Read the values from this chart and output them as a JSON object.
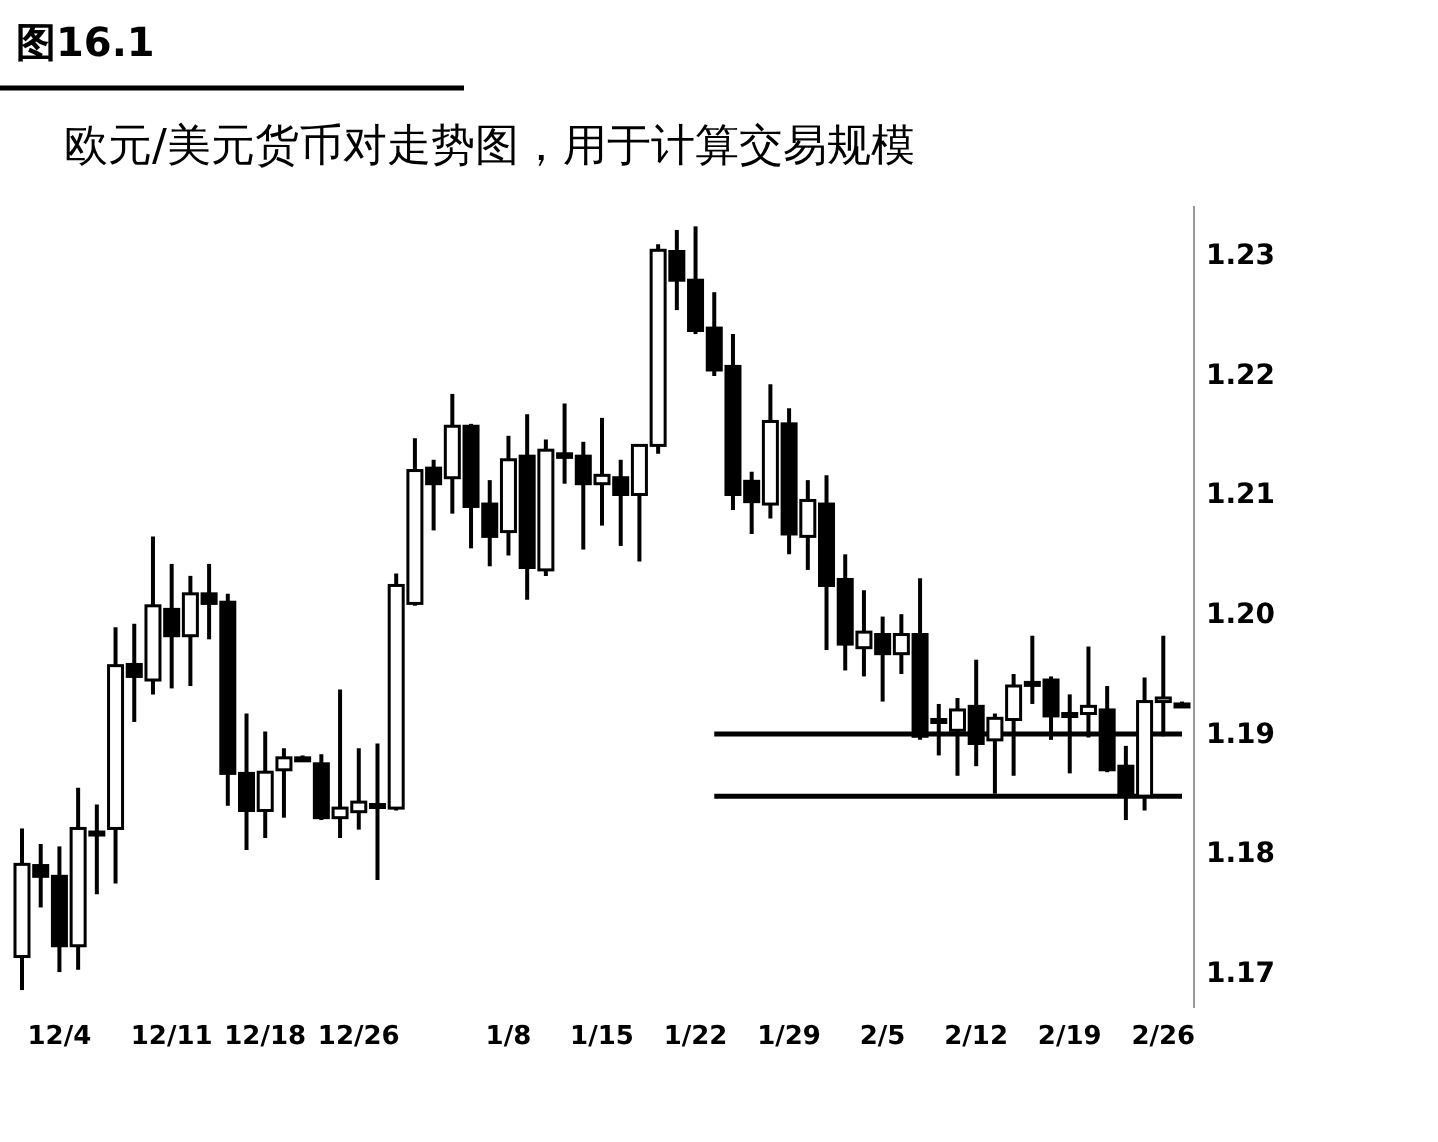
{
  "chart_data": {
    "type": "candlestick",
    "title": "图16.1",
    "subtitle": "欧元/美元货币对走势图，用于计算交易规模",
    "categories": [
      null,
      null,
      "12/4",
      null,
      null,
      null,
      null,
      null,
      "12/11",
      null,
      null,
      null,
      null,
      "12/18",
      null,
      null,
      null,
      null,
      "12/26",
      null,
      null,
      null,
      null,
      null,
      null,
      null,
      "1/8",
      null,
      null,
      null,
      null,
      "1/15",
      null,
      null,
      null,
      null,
      "1/22",
      null,
      null,
      null,
      null,
      "1/29",
      null,
      null,
      null,
      null,
      "2/5",
      null,
      null,
      null,
      null,
      "2/12",
      null,
      null,
      null,
      null,
      "2/19",
      null,
      null,
      null,
      null,
      "2/26",
      null
    ],
    "ohlc": [
      [
        1.1713,
        1.182,
        1.1685,
        1.179
      ],
      [
        1.1789,
        1.1807,
        1.1754,
        1.178
      ],
      [
        1.178,
        1.1805,
        1.17,
        1.1722
      ],
      [
        1.1722,
        1.1854,
        1.1702,
        1.182
      ],
      [
        1.1817,
        1.184,
        1.1765,
        1.1817
      ],
      [
        1.182,
        1.1988,
        1.1774,
        1.1956
      ],
      [
        1.1957,
        1.1991,
        1.1909,
        1.1947
      ],
      [
        1.1944,
        1.2064,
        1.1932,
        1.2006
      ],
      [
        1.2003,
        1.2041,
        1.1937,
        1.1981
      ],
      [
        1.1981,
        1.2031,
        1.1939,
        1.2016
      ],
      [
        1.2016,
        1.2041,
        1.1978,
        1.2008
      ],
      [
        1.2009,
        1.2016,
        1.1839,
        1.1866
      ],
      [
        1.1866,
        1.1916,
        1.1802,
        1.1835
      ],
      [
        1.1835,
        1.1901,
        1.1812,
        1.1867
      ],
      [
        1.1869,
        1.1887,
        1.1829,
        1.1879
      ],
      [
        1.1879,
        1.1881,
        1.1877,
        1.1879
      ],
      [
        1.1874,
        1.1882,
        1.1827,
        1.1829
      ],
      [
        1.1829,
        1.1936,
        1.1812,
        1.1837
      ],
      [
        1.1834,
        1.1887,
        1.1819,
        1.1842
      ],
      [
        1.184,
        1.1891,
        1.1777,
        1.184
      ],
      [
        1.1837,
        1.2033,
        1.1835,
        1.2023
      ],
      [
        1.2008,
        1.2146,
        1.2006,
        1.2119
      ],
      [
        1.2121,
        1.2128,
        1.2069,
        1.2108
      ],
      [
        1.2113,
        1.2183,
        1.2083,
        1.2156
      ],
      [
        1.2156,
        1.2158,
        1.2054,
        1.2089
      ],
      [
        1.2091,
        1.2111,
        1.2039,
        1.2064
      ],
      [
        1.2068,
        1.2148,
        1.2048,
        1.2128
      ],
      [
        1.2131,
        1.2166,
        1.2011,
        1.2038
      ],
      [
        1.2036,
        1.2145,
        1.2031,
        1.2136
      ],
      [
        1.2133,
        1.2175,
        1.2108,
        1.213
      ],
      [
        1.2131,
        1.2143,
        1.2053,
        1.2108
      ],
      [
        1.2108,
        1.2163,
        1.2073,
        1.2115
      ],
      [
        1.2113,
        1.2128,
        1.2056,
        1.2099
      ],
      [
        1.2099,
        1.2141,
        1.2043,
        1.214
      ],
      [
        1.214,
        1.2308,
        1.2133,
        1.2303
      ],
      [
        1.2302,
        1.232,
        1.2253,
        1.2278
      ],
      [
        1.2278,
        1.2323,
        1.2233,
        1.2236
      ],
      [
        1.2238,
        1.2268,
        1.2198,
        1.2203
      ],
      [
        1.2206,
        1.2233,
        1.2086,
        1.2099
      ],
      [
        1.211,
        1.2118,
        1.2066,
        1.2093
      ],
      [
        1.2091,
        1.2191,
        1.2079,
        1.216
      ],
      [
        1.2158,
        1.2171,
        1.2049,
        1.2066
      ],
      [
        1.2064,
        1.2111,
        1.2036,
        1.2094
      ],
      [
        1.2091,
        1.2115,
        1.1969,
        1.2023
      ],
      [
        1.2028,
        1.2049,
        1.1952,
        1.1974
      ],
      [
        1.1971,
        1.2019,
        1.1947,
        1.1984
      ],
      [
        1.1982,
        1.1997,
        1.1926,
        1.1966
      ],
      [
        1.1966,
        1.1999,
        1.1949,
        1.1982
      ],
      [
        1.1982,
        1.2029,
        1.1894,
        1.1897
      ],
      [
        1.1911,
        1.1924,
        1.1881,
        1.1909
      ],
      [
        1.1902,
        1.1929,
        1.1864,
        1.1919
      ],
      [
        1.1922,
        1.1961,
        1.1872,
        1.1891
      ],
      [
        1.1894,
        1.1916,
        1.1849,
        1.1912
      ],
      [
        1.1911,
        1.1949,
        1.1864,
        1.1939
      ],
      [
        1.1942,
        1.1981,
        1.1924,
        1.1941
      ],
      [
        1.1944,
        1.1947,
        1.1894,
        1.1914
      ],
      [
        1.1916,
        1.1932,
        1.1866,
        1.1916
      ],
      [
        1.1916,
        1.1972,
        1.1896,
        1.1922
      ],
      [
        1.1919,
        1.1939,
        1.1867,
        1.1869
      ],
      [
        1.1872,
        1.1889,
        1.1827,
        1.1847
      ],
      [
        1.1847,
        1.1946,
        1.1835,
        1.1926
      ],
      [
        1.1926,
        1.1981,
        1.1897,
        1.1929
      ],
      [
        1.1924,
        1.1926,
        1.1921,
        1.1922
      ]
    ],
    "series": [
      {
        "type": "line",
        "color": "#000000",
        "values": [
          null,
          null,
          null,
          null,
          null,
          null,
          null,
          null,
          null,
          null,
          null,
          null,
          null,
          null,
          null,
          null,
          null,
          null,
          null,
          null,
          null,
          null,
          null,
          null,
          null,
          null,
          null,
          null,
          null,
          null,
          null,
          null,
          null,
          null,
          null,
          null,
          null,
          1.1899,
          1.1899,
          1.1899,
          1.1899,
          1.1899,
          1.1899,
          1.1899,
          1.1899,
          1.1899,
          1.1899,
          1.1899,
          1.1899,
          1.1899,
          1.1899,
          1.1899,
          1.1899,
          1.1899,
          1.1899,
          1.1899,
          1.1899,
          1.1899,
          1.1899,
          1.1899,
          1.1899,
          1.1899,
          1.1899
        ]
      },
      {
        "type": "line",
        "color": "#000000",
        "values": [
          null,
          null,
          null,
          null,
          null,
          null,
          null,
          null,
          null,
          null,
          null,
          null,
          null,
          null,
          null,
          null,
          null,
          null,
          null,
          null,
          null,
          null,
          null,
          null,
          null,
          null,
          null,
          null,
          null,
          null,
          null,
          null,
          null,
          null,
          null,
          null,
          null,
          1.1847,
          1.1847,
          1.1847,
          1.1847,
          1.1847,
          1.1847,
          1.1847,
          1.1847,
          1.1847,
          1.1847,
          1.1847,
          1.1847,
          1.1847,
          1.1847,
          1.1847,
          1.1847,
          1.1847,
          1.1847,
          1.1847,
          1.1847,
          1.1847,
          1.1847,
          1.1847,
          1.1847,
          1.1847,
          1.1847
        ]
      }
    ],
    "ylim": [
      1.167,
      1.234
    ],
    "yticks": [
      1.17,
      1.18,
      1.19,
      {
        "value": 1.2,
        "label": "1.20"
      },
      1.21,
      1.22,
      1.23
    ]
  }
}
